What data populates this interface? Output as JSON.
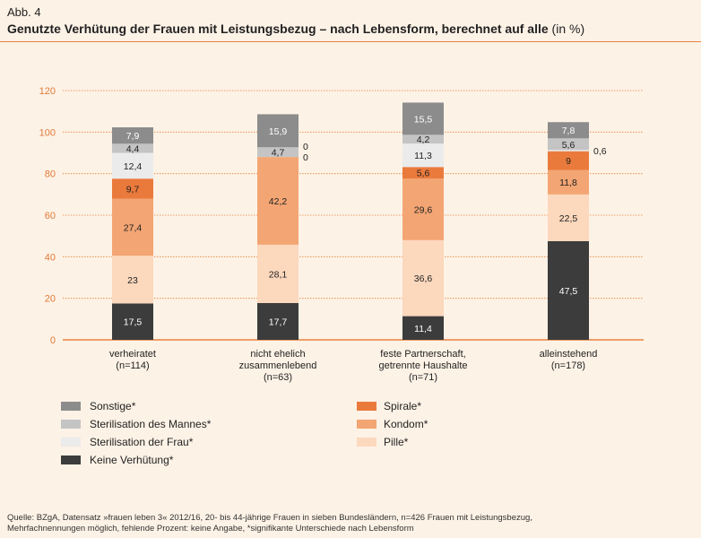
{
  "figure_label": "Abb. 4",
  "title_main": "Genutzte Verhütung der Frauen mit Leistungsbezug – nach Lebensform, berechnet auf alle",
  "title_unit": "(in %)",
  "source_line1": "Quelle: BZgA, Datensatz »frauen leben 3« 2012/16, 20- bis 44-jährige Frauen in sieben Bundesländern, n=426 Frauen mit Leistungsbezug,",
  "source_line2": "Mehrfachnennungen möglich, fehlende Prozent: keine Angabe, *signifikante Unterschiede nach Lebensform",
  "colors": {
    "grid": "#e8823d",
    "axis_text": "#e07a3a"
  },
  "chart_data": {
    "type": "bar",
    "stacked": true,
    "ylim": [
      0,
      120
    ],
    "yticks": [
      0,
      20,
      40,
      60,
      80,
      100,
      120
    ],
    "grid": true,
    "legend_position": "bottom",
    "categories": [
      [
        "verheiratet",
        "(n=114)"
      ],
      [
        "nicht ehelich",
        "zusammenlebend",
        "(n=63)"
      ],
      [
        "feste Partnerschaft,",
        "getrennte Haushalte",
        "(n=71)"
      ],
      [
        "alleinstehend",
        "(n=178)"
      ]
    ],
    "series": [
      {
        "name": "Keine Verhütung*",
        "color": "#3c3c3c",
        "label_color": "#ffffff",
        "values": [
          17.5,
          17.7,
          11.4,
          47.5
        ],
        "labels": [
          "17,5",
          "17,7",
          "11,4",
          "47,5"
        ]
      },
      {
        "name": "Pille*",
        "color": "#fcd8bd",
        "label_color": "#222222",
        "values": [
          23,
          28.1,
          36.6,
          22.5
        ],
        "labels": [
          "23",
          "28,1",
          "36,6",
          "22,5"
        ]
      },
      {
        "name": "Kondom*",
        "color": "#f3a573",
        "label_color": "#222222",
        "values": [
          27.4,
          42.2,
          29.6,
          11.8
        ],
        "labels": [
          "27,4",
          "42,2",
          "29,6",
          "11,8"
        ]
      },
      {
        "name": "Spirale*",
        "color": "#ea7a3c",
        "label_color": "#222222",
        "values": [
          9.7,
          0,
          5.6,
          9
        ],
        "labels": [
          "9,7",
          "0",
          "5,6",
          "9"
        ]
      },
      {
        "name": "Sterilisation der Frau*",
        "color": "#ebebeb",
        "label_color": "#222222",
        "values": [
          12.4,
          0,
          11.3,
          0.6
        ],
        "labels": [
          "12,4",
          "0",
          "11,3",
          "0,6"
        ]
      },
      {
        "name": "Sterilisation des Mannes*",
        "color": "#c4c4c4",
        "label_color": "#222222",
        "values": [
          4.4,
          4.7,
          4.2,
          5.6
        ],
        "labels": [
          "4,4",
          "4,7",
          "4,2",
          "5,6"
        ]
      },
      {
        "name": "Sonstige*",
        "color": "#8c8c8c",
        "label_color": "#ffffff",
        "values": [
          7.9,
          15.9,
          15.5,
          7.8
        ],
        "labels": [
          "7,9",
          "15,9",
          "15,5",
          "7,8"
        ]
      }
    ],
    "legend": {
      "left_column": [
        "Sonstige*",
        "Sterilisation des Mannes*",
        "Sterilisation der Frau*",
        "Keine Verhütung*"
      ],
      "right_column": [
        "Spirale*",
        "Kondom*",
        "Pille*"
      ]
    }
  }
}
